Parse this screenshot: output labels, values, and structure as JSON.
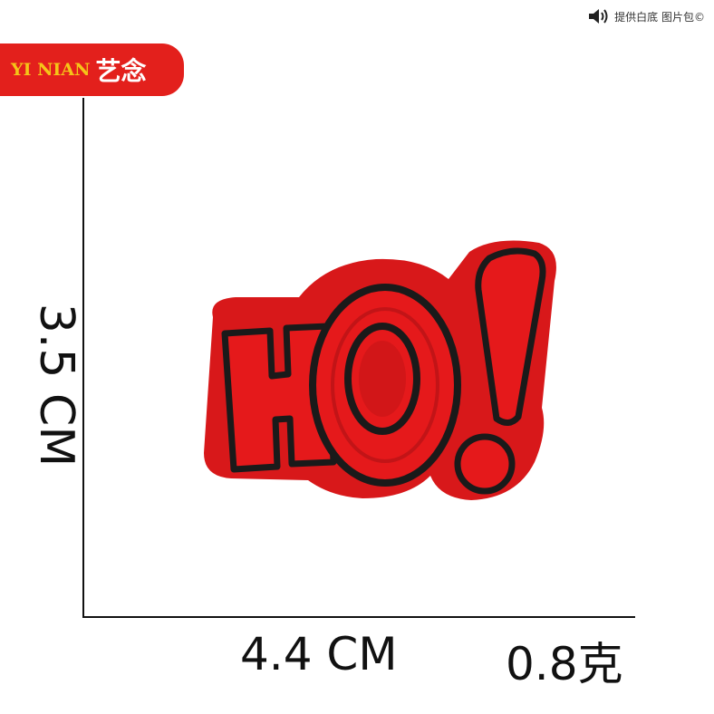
{
  "watermark": {
    "icon": "speaker-icon",
    "text": "提供白底 图片包©"
  },
  "brand": {
    "latin": "YI NIAN",
    "cjk": "艺念"
  },
  "dimensions": {
    "height": "3.5 CM",
    "width": "4.4 CM",
    "weight": "0.8克"
  },
  "patch": {
    "text": "HO!",
    "colors": {
      "fill": "#e5191b",
      "outline": "#1a1a1a",
      "border": "#d8181a"
    }
  }
}
